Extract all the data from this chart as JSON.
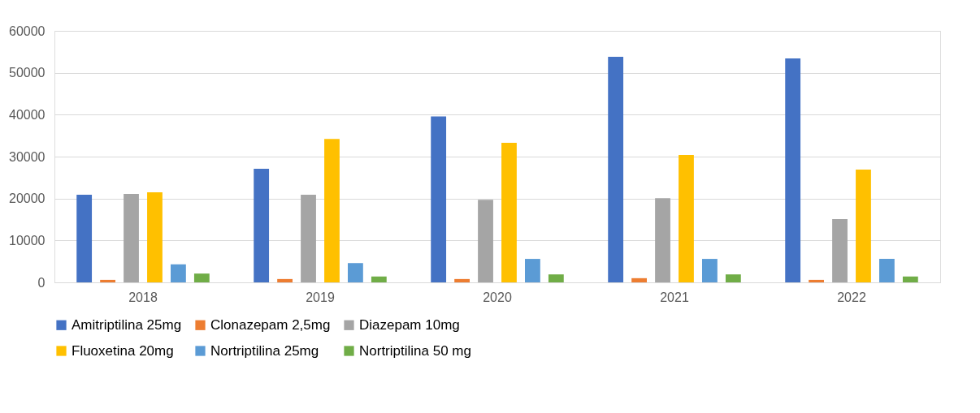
{
  "chart_data": {
    "type": "bar",
    "categories": [
      "2018",
      "2019",
      "2020",
      "2021",
      "2022"
    ],
    "series": [
      {
        "name": "Amitriptilina 25mg",
        "color": "#4472c4",
        "values": [
          20900,
          27100,
          39600,
          53800,
          53400
        ]
      },
      {
        "name": "Clonazepam 2,5mg",
        "color": "#ed7d31",
        "values": [
          600,
          800,
          800,
          1000,
          600
        ]
      },
      {
        "name": "Diazepam 10mg",
        "color": "#a5a5a5",
        "values": [
          21100,
          20900,
          19700,
          20100,
          15100
        ]
      },
      {
        "name": "Fluoxetina 20mg",
        "color": "#ffc000",
        "values": [
          21500,
          34200,
          33300,
          30400,
          26900
        ]
      },
      {
        "name": "Nortriptilina 25mg",
        "color": "#5b9bd5",
        "values": [
          4300,
          4600,
          5600,
          5600,
          5600
        ]
      },
      {
        "name": "Nortriptilina 50 mg",
        "color": "#70ad47",
        "values": [
          2100,
          1400,
          1900,
          1900,
          1400
        ]
      }
    ],
    "ylim": [
      0,
      60000
    ],
    "yticks": [
      0,
      10000,
      20000,
      30000,
      40000,
      50000,
      60000
    ],
    "grid": "y",
    "legend": "bottom"
  }
}
